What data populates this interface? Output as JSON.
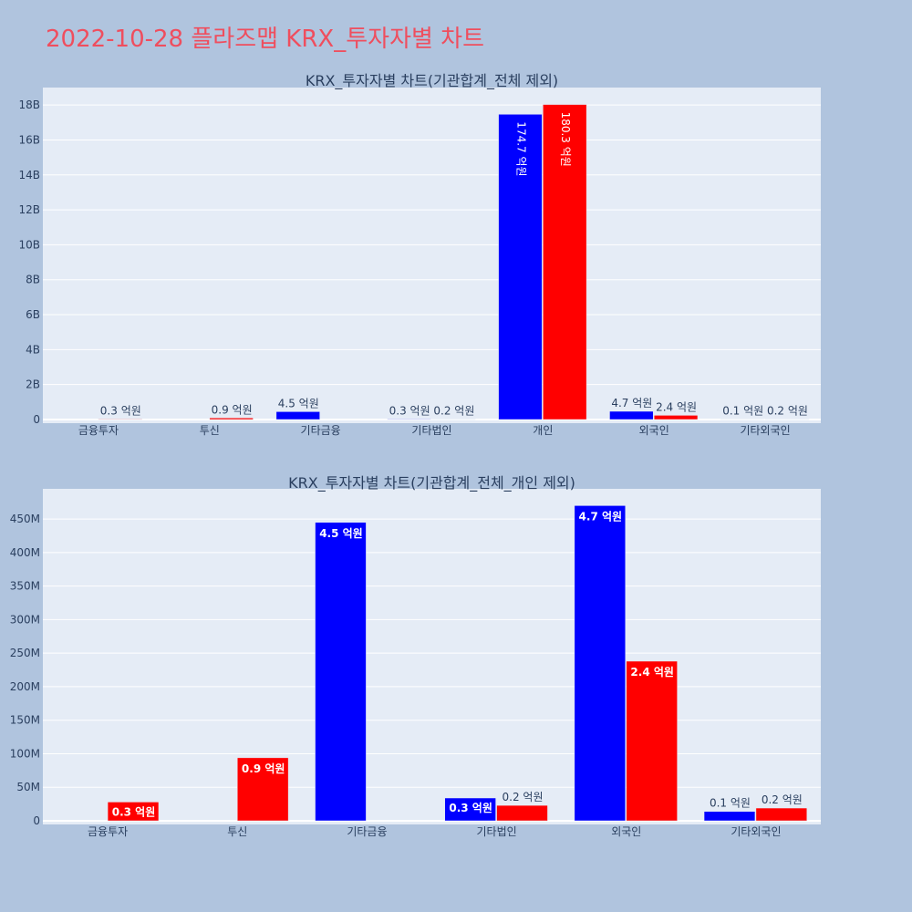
{
  "page": {
    "title": "2022-10-28 플라즈맵 KRX_투자자별 차트"
  },
  "colors": {
    "series1": "#0000ff",
    "series2": "#ff0000",
    "plot_bg": "#e5ecf6",
    "page_bg": "#b0c4de",
    "title": "#ef4e5e"
  },
  "chart_data": [
    {
      "type": "bar",
      "title": "KRX_투자자별 차트(기관합계_전체 제외)",
      "categories": [
        "금융투자",
        "투신",
        "기타금융",
        "기타법인",
        "개인",
        "외국인",
        "기타외국인"
      ],
      "series": [
        {
          "values": [
            0,
            0,
            450000000,
            30000000,
            17470000000,
            470000000,
            15000000
          ],
          "labels": [
            "",
            "",
            "4.5 억원",
            "0.3 억원",
            "174.7 억원",
            "4.7 억원",
            "0.1 억원"
          ]
        },
        {
          "values": [
            30000000,
            90000000,
            0,
            20000000,
            18030000000,
            240000000,
            20000000
          ],
          "labels": [
            "0.3 억원",
            "0.9 억원",
            "",
            "0.2 억원",
            "180.3 억원",
            "2.4 억원",
            "0.2 억원"
          ]
        }
      ],
      "yticks": [
        0,
        2000000000,
        4000000000,
        6000000000,
        8000000000,
        10000000000,
        12000000000,
        14000000000,
        16000000000,
        18000000000
      ],
      "ytick_labels": [
        "0",
        "2B",
        "4B",
        "6B",
        "8B",
        "10B",
        "12B",
        "14B",
        "16B",
        "18B"
      ],
      "ylim": [
        0,
        19000000000
      ]
    },
    {
      "type": "bar",
      "title": "KRX_투자자별 차트(기관합계_전체_개인 제외)",
      "categories": [
        "금융투자",
        "투신",
        "기타금융",
        "기타법인",
        "외국인",
        "기타외국인"
      ],
      "series": [
        {
          "values": [
            0,
            0,
            445000000,
            34000000,
            470000000,
            14000000
          ],
          "labels": [
            "",
            "",
            "4.5 억원",
            "0.3 억원",
            "4.7 억원",
            "0.1 억원"
          ]
        },
        {
          "values": [
            28000000,
            94000000,
            0,
            23000000,
            238000000,
            19000000
          ],
          "labels": [
            "0.3 억원",
            "0.9 억원",
            "",
            "0.2 억원",
            "2.4 억원",
            "0.2 억원"
          ]
        }
      ],
      "yticks": [
        0,
        50000000,
        100000000,
        150000000,
        200000000,
        250000000,
        300000000,
        350000000,
        400000000,
        450000000
      ],
      "ytick_labels": [
        "0",
        "50M",
        "100M",
        "150M",
        "200M",
        "250M",
        "300M",
        "350M",
        "400M",
        "450M"
      ],
      "ylim": [
        0,
        495000000
      ]
    }
  ]
}
